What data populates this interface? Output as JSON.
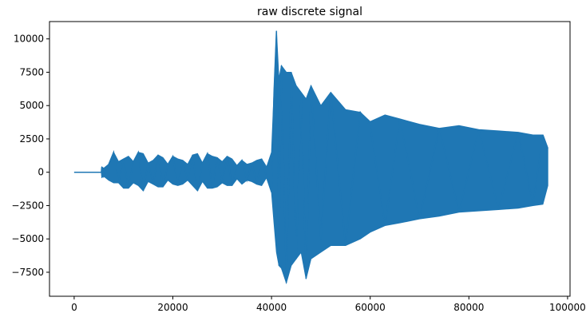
{
  "chart_data": {
    "type": "line",
    "title": "raw discrete signal",
    "xlabel": "",
    "ylabel": "",
    "xlim": [
      -5000,
      100500
    ],
    "ylim": [
      -9300,
      11300
    ],
    "xticks": [
      0,
      20000,
      40000,
      60000,
      80000,
      100000
    ],
    "xtick_labels": [
      "0",
      "20000",
      "40000",
      "60000",
      "80000",
      "100000"
    ],
    "yticks": [
      -7500,
      -5000,
      -2500,
      0,
      2500,
      5000,
      7500,
      10000
    ],
    "ytick_labels": [
      "−7500",
      "−5000",
      "−2500",
      "0",
      "2500",
      "5000",
      "7500",
      "10000"
    ],
    "grid": false,
    "line_color": "#1f77b4",
    "series": [
      {
        "x": [
          0,
          5500,
          5600,
          6000,
          7000,
          8000,
          9000,
          10000,
          11000,
          12000,
          13000,
          14000,
          15000,
          16000,
          17000,
          18000,
          19000,
          20000,
          21000,
          22000,
          23000,
          24000,
          25000,
          26000,
          27000,
          28000,
          29000,
          30000,
          31000,
          32000,
          33000,
          34000,
          35000,
          36000,
          37000,
          38000,
          39000,
          40000,
          40500,
          41000,
          41500,
          42000,
          43000,
          44000,
          45000,
          46000,
          47000,
          48000,
          50000,
          52000,
          55000,
          58000,
          60000,
          63000,
          66000,
          70000,
          74000,
          78000,
          82000,
          86000,
          90000,
          93000,
          95000,
          96000
        ],
        "y": [
          0,
          0,
          400,
          -300,
          600,
          1500,
          -800,
          1000,
          -1200,
          800,
          1500,
          -1400,
          700,
          -900,
          1300,
          -1100,
          600,
          1200,
          -1000,
          900,
          -600,
          1300,
          -1400,
          700,
          1400,
          -1200,
          1100,
          -800,
          1200,
          -1000,
          500,
          900,
          -600,
          700,
          -900,
          1000,
          -400,
          -1500,
          6000,
          10600,
          -7000,
          8000,
          -8300,
          7500,
          -6500,
          6000,
          -8000,
          6500,
          -5000,
          6000,
          -5500,
          4500,
          3500,
          -4000,
          4000,
          -3500,
          3300,
          -3000,
          3200,
          -2800,
          3000,
          -2500,
          2800,
          1800
        ],
        "envelope_hi": [
          0,
          0,
          400,
          300,
          600,
          1500,
          800,
          1000,
          1200,
          800,
          1500,
          1400,
          700,
          900,
          1300,
          1100,
          600,
          1200,
          1000,
          900,
          600,
          1300,
          1400,
          700,
          1400,
          1200,
          1100,
          800,
          1200,
          1000,
          500,
          900,
          600,
          700,
          900,
          1000,
          400,
          1500,
          6000,
          10600,
          7000,
          8000,
          7500,
          7500,
          6500,
          6000,
          5500,
          6500,
          5000,
          6000,
          4700,
          4500,
          3800,
          4300,
          4000,
          3600,
          3300,
          3500,
          3200,
          3100,
          3000,
          2800,
          2800,
          1800
        ],
        "envelope_lo": [
          0,
          0,
          -400,
          -300,
          -600,
          -800,
          -800,
          -1200,
          -1200,
          -800,
          -1000,
          -1400,
          -700,
          -900,
          -1100,
          -1100,
          -600,
          -900,
          -1000,
          -900,
          -600,
          -1000,
          -1400,
          -700,
          -1200,
          -1200,
          -1100,
          -800,
          -1000,
          -1000,
          -500,
          -900,
          -600,
          -700,
          -900,
          -1000,
          -400,
          -1500,
          -3800,
          -6000,
          -7000,
          -7200,
          -8300,
          -7000,
          -6500,
          -6000,
          -8000,
          -6500,
          -6000,
          -5500,
          -5500,
          -5000,
          -4500,
          -4000,
          -3800,
          -3500,
          -3300,
          -3000,
          -2900,
          -2800,
          -2700,
          -2500,
          -2400,
          -1000
        ]
      }
    ]
  }
}
